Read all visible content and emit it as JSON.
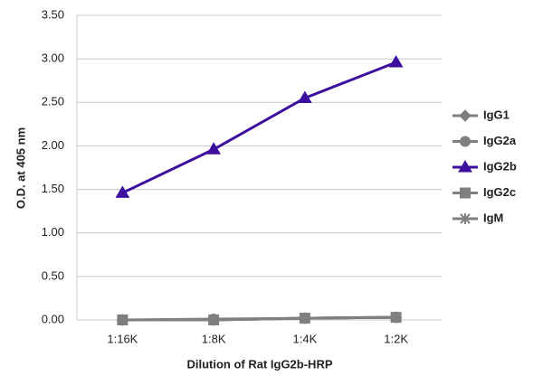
{
  "chart_data": {
    "type": "line",
    "y_axis_label": "O.D. at 405 nm",
    "x_axis_label": "Dilution of Rat IgG2b-HRP",
    "categories": [
      "1:16K",
      "1:8K",
      "1:4K",
      "1:2K"
    ],
    "series": [
      {
        "name": "IgG1",
        "color": "#7f7f7f",
        "marker": "diamond",
        "values": [
          0,
          0,
          0.02,
          0.03
        ]
      },
      {
        "name": "IgG2a",
        "color": "#7f7f7f",
        "marker": "circle",
        "values": [
          0,
          0.01,
          0.02,
          0.03
        ]
      },
      {
        "name": "IgG2b",
        "color": "#3d0f9e",
        "marker": "triangle",
        "values": [
          1.46,
          1.96,
          2.55,
          2.96
        ]
      },
      {
        "name": "IgG2c",
        "color": "#7f7f7f",
        "marker": "square",
        "values": [
          0,
          0,
          0.02,
          0.03
        ]
      },
      {
        "name": "IgM",
        "color": "#7f7f7f",
        "marker": "star",
        "values": [
          0,
          0,
          0.02,
          0.03
        ]
      }
    ],
    "ylim": [
      0,
      3.5
    ],
    "yticks": [
      {
        "value": 0,
        "label": "0.00"
      },
      {
        "value": 0.5,
        "label": "0.50"
      },
      {
        "value": 1,
        "label": "1.00"
      },
      {
        "value": 1.5,
        "label": "1.50"
      },
      {
        "value": 2,
        "label": "2.00"
      },
      {
        "value": 2.5,
        "label": "2.50"
      },
      {
        "value": 3,
        "label": "3.00"
      },
      {
        "value": 3.5,
        "label": "3.50"
      }
    ],
    "grid": true,
    "legend": "right"
  }
}
